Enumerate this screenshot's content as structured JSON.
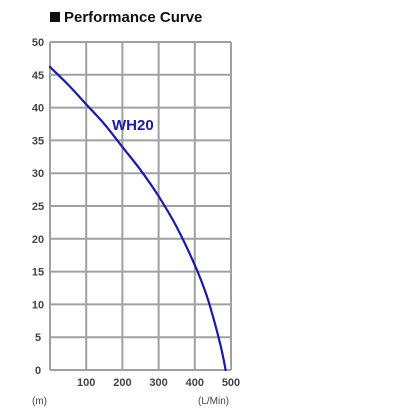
{
  "chart_data": {
    "type": "line",
    "title": "Performance Curve",
    "xlabel": "(L/Min)",
    "ylabel": "(m)",
    "xlim": [
      0,
      500
    ],
    "ylim": [
      0,
      50
    ],
    "x_ticks": [
      {
        "value": 0,
        "label": "0"
      },
      {
        "value": 100,
        "label": "100"
      },
      {
        "value": 200,
        "label": "200"
      },
      {
        "value": 300,
        "label": "300"
      },
      {
        "value": 400,
        "label": "400"
      },
      {
        "value": 500,
        "label": "500"
      }
    ],
    "y_ticks": [
      {
        "value": 0,
        "label": "0"
      },
      {
        "value": 5,
        "label": "5"
      },
      {
        "value": 10,
        "label": "10"
      },
      {
        "value": 15,
        "label": "15"
      },
      {
        "value": 20,
        "label": "20"
      },
      {
        "value": 25,
        "label": "25"
      },
      {
        "value": 30,
        "label": "30"
      },
      {
        "value": 35,
        "label": "35"
      },
      {
        "value": 40,
        "label": "40"
      },
      {
        "value": 45,
        "label": "45"
      },
      {
        "value": 50,
        "label": "50"
      }
    ],
    "grid": true,
    "series": [
      {
        "name": "WH20",
        "color": "#1a1aa8",
        "x": [
          0,
          50,
          100,
          150,
          200,
          250,
          300,
          350,
          400,
          430,
          450,
          470,
          480,
          485
        ],
        "y": [
          46.2,
          43.5,
          40.5,
          37.5,
          34,
          30.5,
          26.5,
          21.8,
          16,
          11.8,
          8.2,
          4,
          1.5,
          0
        ]
      }
    ]
  },
  "colors": {
    "grid": "#a0a0a0",
    "title_marker": "#111111"
  }
}
